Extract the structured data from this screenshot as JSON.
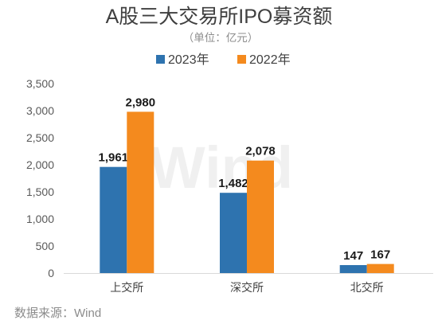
{
  "chart_data": {
    "type": "bar",
    "title": "A股三大交易所IPO募资额",
    "subtitle": "（单位：亿元）",
    "categories": [
      "上交所",
      "深交所",
      "北交所"
    ],
    "series": [
      {
        "name": "2023年",
        "values": [
          1961,
          1482,
          147
        ],
        "color": "#2E73AF"
      },
      {
        "name": "2022年",
        "values": [
          2980,
          2078,
          167
        ],
        "color": "#F48A1E"
      }
    ],
    "ylim": [
      0,
      3500
    ],
    "yticks": [
      0,
      500,
      1000,
      1500,
      2000,
      2500,
      3000,
      3500
    ],
    "grid": false,
    "legend": "top-center",
    "data_labels": true
  },
  "source": "数据来源：Wind",
  "watermark": "Wind"
}
